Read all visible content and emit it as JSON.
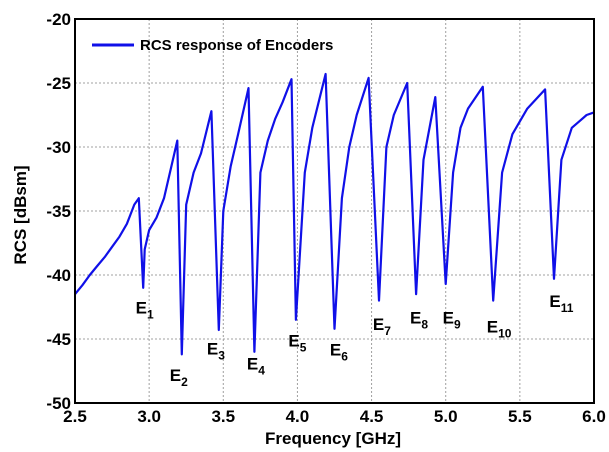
{
  "chart_data": {
    "type": "line",
    "xlabel": "Frequency [GHz]",
    "ylabel": "RCS [dBsm]",
    "xlim": [
      2.5,
      6.0
    ],
    "ylim": [
      -50,
      -20
    ],
    "xticks": [
      "2.5",
      "3.0",
      "3.5",
      "4.0",
      "4.5",
      "5.0",
      "5.5",
      "6.0"
    ],
    "yticks": [
      "-20",
      "-25",
      "-30",
      "-35",
      "-40",
      "-45",
      "-50"
    ],
    "grid": true,
    "legend_position": "top-left",
    "colors": {
      "series": "#1010e8",
      "grid": "#a0a0a0",
      "axis": "#000000"
    },
    "series": [
      {
        "name": "RCS response of Encoders",
        "x": [
          2.5,
          2.55,
          2.6,
          2.65,
          2.7,
          2.75,
          2.8,
          2.85,
          2.9,
          2.93,
          2.96,
          2.97,
          3.0,
          3.05,
          3.1,
          3.15,
          3.19,
          3.22,
          3.25,
          3.3,
          3.35,
          3.42,
          3.47,
          3.5,
          3.55,
          3.6,
          3.67,
          3.71,
          3.75,
          3.8,
          3.85,
          3.9,
          3.96,
          3.99,
          4.05,
          4.1,
          4.19,
          4.25,
          4.3,
          4.35,
          4.4,
          4.48,
          4.55,
          4.6,
          4.65,
          4.74,
          4.8,
          4.85,
          4.93,
          5.0,
          5.05,
          5.1,
          5.15,
          5.25,
          5.32,
          5.38,
          5.45,
          5.55,
          5.67,
          5.73,
          5.78,
          5.85,
          5.9,
          5.95,
          6.0
        ],
        "y": [
          -41.5,
          -40.8,
          -40.0,
          -39.3,
          -38.6,
          -37.8,
          -37.0,
          -36.0,
          -34.5,
          -34.0,
          -41.0,
          -38.0,
          -36.5,
          -35.5,
          -34.0,
          -31.5,
          -29.5,
          -46.2,
          -34.5,
          -32.0,
          -30.5,
          -27.2,
          -44.3,
          -35.0,
          -31.5,
          -29.0,
          -25.4,
          -46.0,
          -32.0,
          -29.5,
          -27.8,
          -26.5,
          -24.7,
          -43.5,
          -32.0,
          -28.5,
          -24.3,
          -44.2,
          -34.0,
          -30.0,
          -27.5,
          -24.6,
          -42.0,
          -30.0,
          -27.5,
          -25.0,
          -41.5,
          -31.0,
          -26.1,
          -40.7,
          -32.0,
          -28.5,
          -27.0,
          -25.3,
          -42.0,
          -32.0,
          -29.0,
          -27.0,
          -25.5,
          -40.3,
          -31.0,
          -28.5,
          -28.0,
          -27.5,
          -27.3
        ]
      }
    ],
    "annotations": [
      {
        "base": "E",
        "sub": "1",
        "x": 2.97,
        "y": -43.0
      },
      {
        "base": "E",
        "sub": "2",
        "x": 3.2,
        "y": -48.3
      },
      {
        "base": "E",
        "sub": "3",
        "x": 3.45,
        "y": -46.2
      },
      {
        "base": "E",
        "sub": "4",
        "x": 3.72,
        "y": -47.4
      },
      {
        "base": "E",
        "sub": "5",
        "x": 4.0,
        "y": -45.6
      },
      {
        "base": "E",
        "sub": "6",
        "x": 4.28,
        "y": -46.3
      },
      {
        "base": "E",
        "sub": "7",
        "x": 4.57,
        "y": -44.3
      },
      {
        "base": "E",
        "sub": "8",
        "x": 4.82,
        "y": -43.8
      },
      {
        "base": "E",
        "sub": "9",
        "x": 5.04,
        "y": -43.8
      },
      {
        "base": "E",
        "sub": "10",
        "x": 5.36,
        "y": -44.5
      },
      {
        "base": "E",
        "sub": "11",
        "x": 5.78,
        "y": -42.5
      }
    ]
  }
}
